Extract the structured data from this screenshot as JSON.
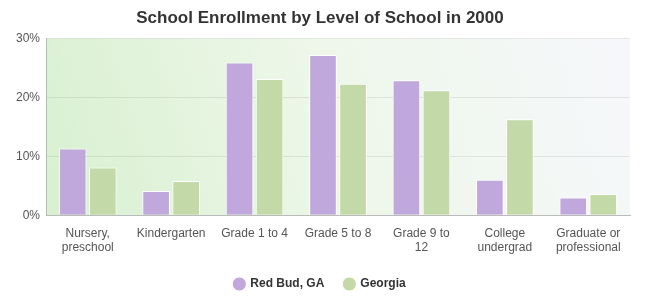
{
  "chart_data": {
    "type": "bar",
    "title": "School Enrollment by Level of School in 2000",
    "categories": [
      "Nursery, preschool",
      "Kindergarten",
      "Grade 1 to 4",
      "Grade 5 to 8",
      "Grade 9 to 12",
      "College undergrad",
      "Graduate or professional"
    ],
    "series": [
      {
        "name": "Red Bud, GA",
        "color": "#c0a8dc",
        "values": [
          11.3,
          4.1,
          25.9,
          27.2,
          22.9,
          6.0,
          3.0
        ]
      },
      {
        "name": "Georgia",
        "color": "#c4d9a8",
        "values": [
          8.1,
          5.8,
          23.1,
          22.3,
          21.2,
          16.3,
          3.6
        ]
      }
    ],
    "ylim": [
      0,
      30
    ],
    "yticks": [
      {
        "value": 0,
        "label": "0%"
      },
      {
        "value": 10,
        "label": "10%"
      },
      {
        "value": 20,
        "label": "20%"
      },
      {
        "value": 30,
        "label": "30%"
      }
    ],
    "grid": true,
    "legend": "bottom"
  }
}
